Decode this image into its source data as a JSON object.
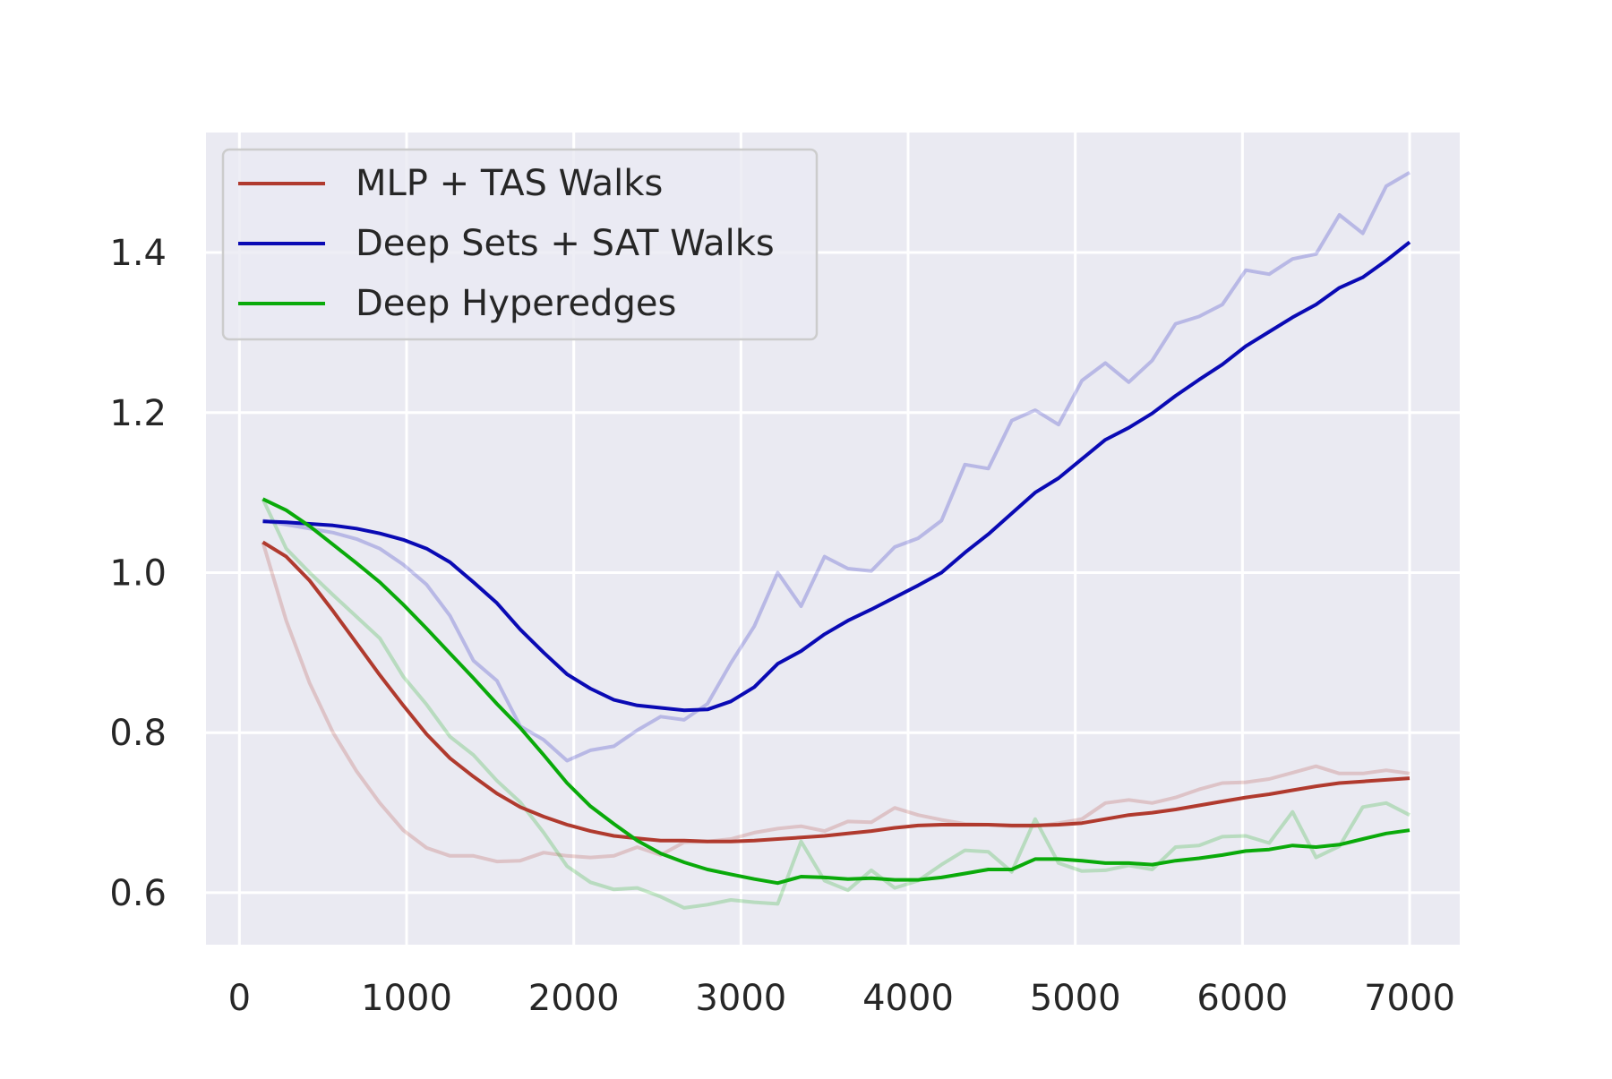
{
  "chart_data": {
    "type": "line",
    "title": "",
    "xlabel": "",
    "ylabel": "",
    "xlim": [
      -200,
      7300
    ],
    "ylim": [
      0.535,
      1.55
    ],
    "xticks": [
      0,
      1000,
      2000,
      3000,
      4000,
      5000,
      6000,
      7000
    ],
    "xtick_labels": [
      "0",
      "1000",
      "2000",
      "3000",
      "4000",
      "5000",
      "6000",
      "7000"
    ],
    "yticks": [
      0.6,
      0.8,
      1.0,
      1.2,
      1.4
    ],
    "ytick_labels": [
      "0.6",
      "0.8",
      "1.0",
      "1.2",
      "1.4"
    ],
    "grid": true,
    "legend_position": "top-left",
    "x": [
      140,
      280,
      420,
      560,
      700,
      840,
      980,
      1120,
      1260,
      1400,
      1540,
      1680,
      1820,
      1960,
      2100,
      2240,
      2380,
      2520,
      2660,
      2800,
      2940,
      3080,
      3220,
      3360,
      3500,
      3640,
      3780,
      3920,
      4060,
      4200,
      4340,
      4480,
      4620,
      4760,
      4900,
      5040,
      5180,
      5320,
      5460,
      5600,
      5740,
      5880,
      6020,
      6160,
      6300,
      6440,
      6580,
      6720,
      6860,
      7000
    ],
    "series": [
      {
        "name": "MLP + TAS Walks",
        "color": "#b03a2e",
        "smoothed": [
          1.038,
          1.02,
          0.99,
          0.952,
          0.912,
          0.872,
          0.834,
          0.798,
          0.768,
          0.745,
          0.724,
          0.707,
          0.695,
          0.685,
          0.677,
          0.671,
          0.668,
          0.665,
          0.665,
          0.664,
          0.664,
          0.665,
          0.667,
          0.669,
          0.671,
          0.674,
          0.677,
          0.681,
          0.684,
          0.685,
          0.685,
          0.685,
          0.684,
          0.684,
          0.685,
          0.687,
          0.692,
          0.697,
          0.7,
          0.704,
          0.709,
          0.714,
          0.719,
          0.723,
          0.728,
          0.733,
          0.737,
          0.739,
          0.741,
          0.743
        ],
        "raw": [
          1.038,
          0.94,
          0.862,
          0.8,
          0.752,
          0.712,
          0.678,
          0.656,
          0.646,
          0.646,
          0.639,
          0.64,
          0.65,
          0.646,
          0.644,
          0.646,
          0.657,
          0.647,
          0.663,
          0.664,
          0.667,
          0.675,
          0.68,
          0.683,
          0.677,
          0.689,
          0.688,
          0.706,
          0.697,
          0.691,
          0.686,
          0.685,
          0.683,
          0.683,
          0.687,
          0.692,
          0.712,
          0.716,
          0.712,
          0.719,
          0.729,
          0.737,
          0.738,
          0.742,
          0.75,
          0.758,
          0.749,
          0.749,
          0.753,
          0.749
        ]
      },
      {
        "name": "Deep Sets + SAT Walks",
        "color": "#0a0ab4",
        "smoothed": [
          1.064,
          1.063,
          1.061,
          1.059,
          1.055,
          1.049,
          1.041,
          1.03,
          1.013,
          0.988,
          0.962,
          0.929,
          0.9,
          0.873,
          0.855,
          0.841,
          0.834,
          0.831,
          0.828,
          0.829,
          0.839,
          0.857,
          0.886,
          0.902,
          0.923,
          0.94,
          0.954,
          0.969,
          0.984,
          1.0,
          1.025,
          1.048,
          1.074,
          1.1,
          1.118,
          1.142,
          1.166,
          1.181,
          1.199,
          1.221,
          1.241,
          1.26,
          1.283,
          1.301,
          1.319,
          1.335,
          1.356,
          1.369,
          1.39,
          1.413
        ],
        "raw": [
          1.065,
          1.06,
          1.055,
          1.05,
          1.042,
          1.03,
          1.01,
          0.985,
          0.946,
          0.89,
          0.865,
          0.808,
          0.791,
          0.765,
          0.778,
          0.783,
          0.803,
          0.82,
          0.816,
          0.836,
          0.887,
          0.933,
          1.0,
          0.958,
          1.02,
          1.005,
          1.002,
          1.032,
          1.043,
          1.065,
          1.135,
          1.13,
          1.19,
          1.203,
          1.185,
          1.24,
          1.262,
          1.238,
          1.265,
          1.311,
          1.32,
          1.335,
          1.378,
          1.373,
          1.392,
          1.398,
          1.447,
          1.424,
          1.483,
          1.5
        ]
      },
      {
        "name": "Deep Hyperedges",
        "color": "#0aaa0a",
        "smoothed": [
          1.092,
          1.078,
          1.058,
          1.035,
          1.012,
          0.988,
          0.96,
          0.93,
          0.899,
          0.868,
          0.836,
          0.806,
          0.772,
          0.737,
          0.708,
          0.686,
          0.665,
          0.649,
          0.638,
          0.629,
          0.623,
          0.617,
          0.612,
          0.62,
          0.619,
          0.617,
          0.618,
          0.616,
          0.616,
          0.619,
          0.624,
          0.629,
          0.629,
          0.642,
          0.642,
          0.64,
          0.637,
          0.637,
          0.635,
          0.64,
          0.643,
          0.647,
          0.652,
          0.654,
          0.659,
          0.657,
          0.66,
          0.667,
          0.674,
          0.678
        ],
        "raw": [
          1.092,
          1.03,
          1.0,
          0.972,
          0.945,
          0.918,
          0.87,
          0.835,
          0.795,
          0.772,
          0.74,
          0.713,
          0.675,
          0.633,
          0.613,
          0.604,
          0.606,
          0.595,
          0.581,
          0.585,
          0.591,
          0.588,
          0.586,
          0.664,
          0.615,
          0.603,
          0.628,
          0.606,
          0.615,
          0.635,
          0.653,
          0.651,
          0.626,
          0.692,
          0.637,
          0.627,
          0.628,
          0.634,
          0.629,
          0.657,
          0.659,
          0.67,
          0.671,
          0.662,
          0.701,
          0.644,
          0.658,
          0.707,
          0.712,
          0.697
        ]
      }
    ]
  }
}
